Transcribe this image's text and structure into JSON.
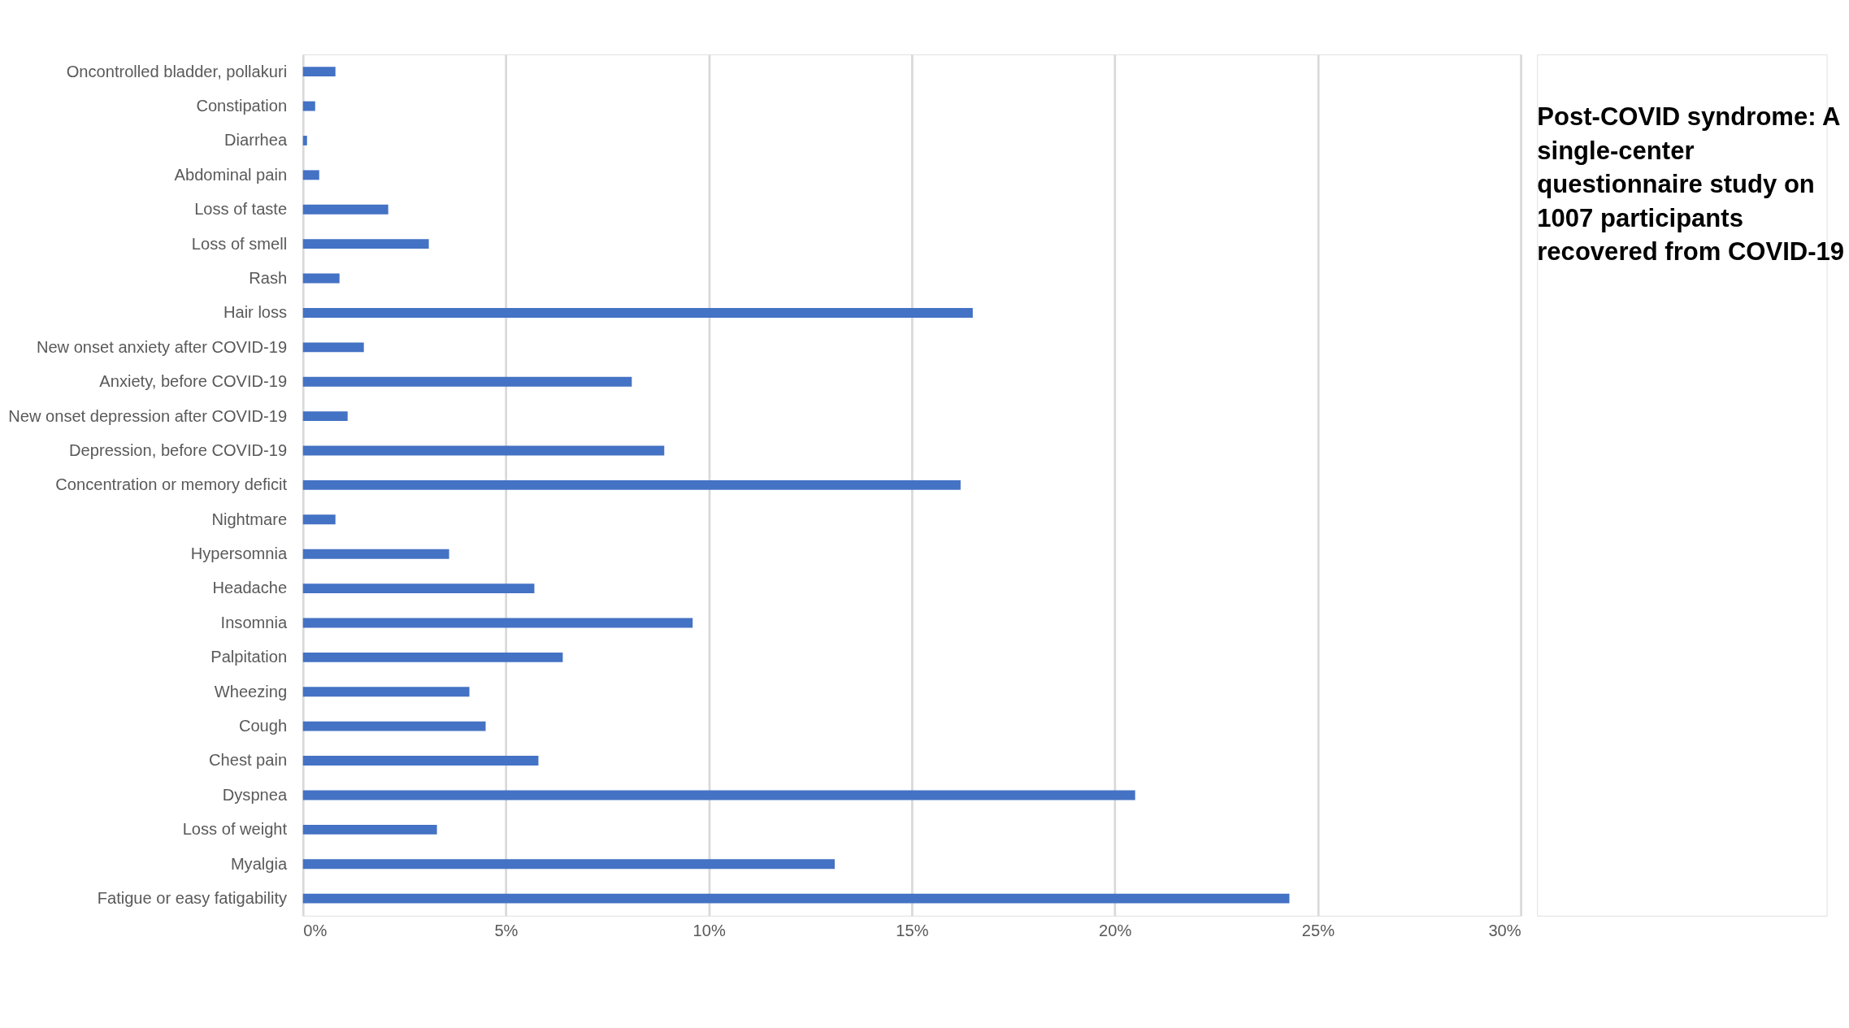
{
  "chart_data": {
    "type": "bar",
    "orientation": "horizontal",
    "title": "Post-COVID syndrome: A single-center questionnaire study on 1007 participants recovered from COVID-19",
    "categories": [
      "Oncontrolled bladder, pollakuri",
      "Constipation",
      "Diarrhea",
      "Abdominal pain",
      "Loss of taste",
      "Loss of smell",
      "Rash",
      "Hair loss",
      "New onset anxiety after COVID-19",
      "Anxiety, before COVID-19",
      "New onset depression after COVID-19",
      "Depression, before COVID-19",
      "Concentration or memory deficit",
      "Nightmare",
      "Hypersomnia",
      "Headache",
      "Insomnia",
      "Palpitation",
      "Wheezing",
      "Cough",
      "Chest pain",
      "Dyspnea",
      "Loss of weight",
      "Myalgia",
      "Fatigue or easy fatigability"
    ],
    "values": [
      0.8,
      0.3,
      0.1,
      0.4,
      2.1,
      3.1,
      0.9,
      16.5,
      1.5,
      8.1,
      1.1,
      8.9,
      16.2,
      0.8,
      3.6,
      5.7,
      9.6,
      6.4,
      4.1,
      4.5,
      5.8,
      20.5,
      3.3,
      13.1,
      24.3
    ],
    "color": "#4472c4",
    "xlim": [
      0,
      30
    ],
    "xticks": [
      {
        "value": 0,
        "label": "0%"
      },
      {
        "value": 5,
        "label": "5%"
      },
      {
        "value": 10,
        "label": "10%"
      },
      {
        "value": 15,
        "label": "15%"
      },
      {
        "value": 20,
        "label": "20%"
      },
      {
        "value": 25,
        "label": "25%"
      },
      {
        "value": 30,
        "label": "30%"
      }
    ],
    "grid": "x"
  }
}
